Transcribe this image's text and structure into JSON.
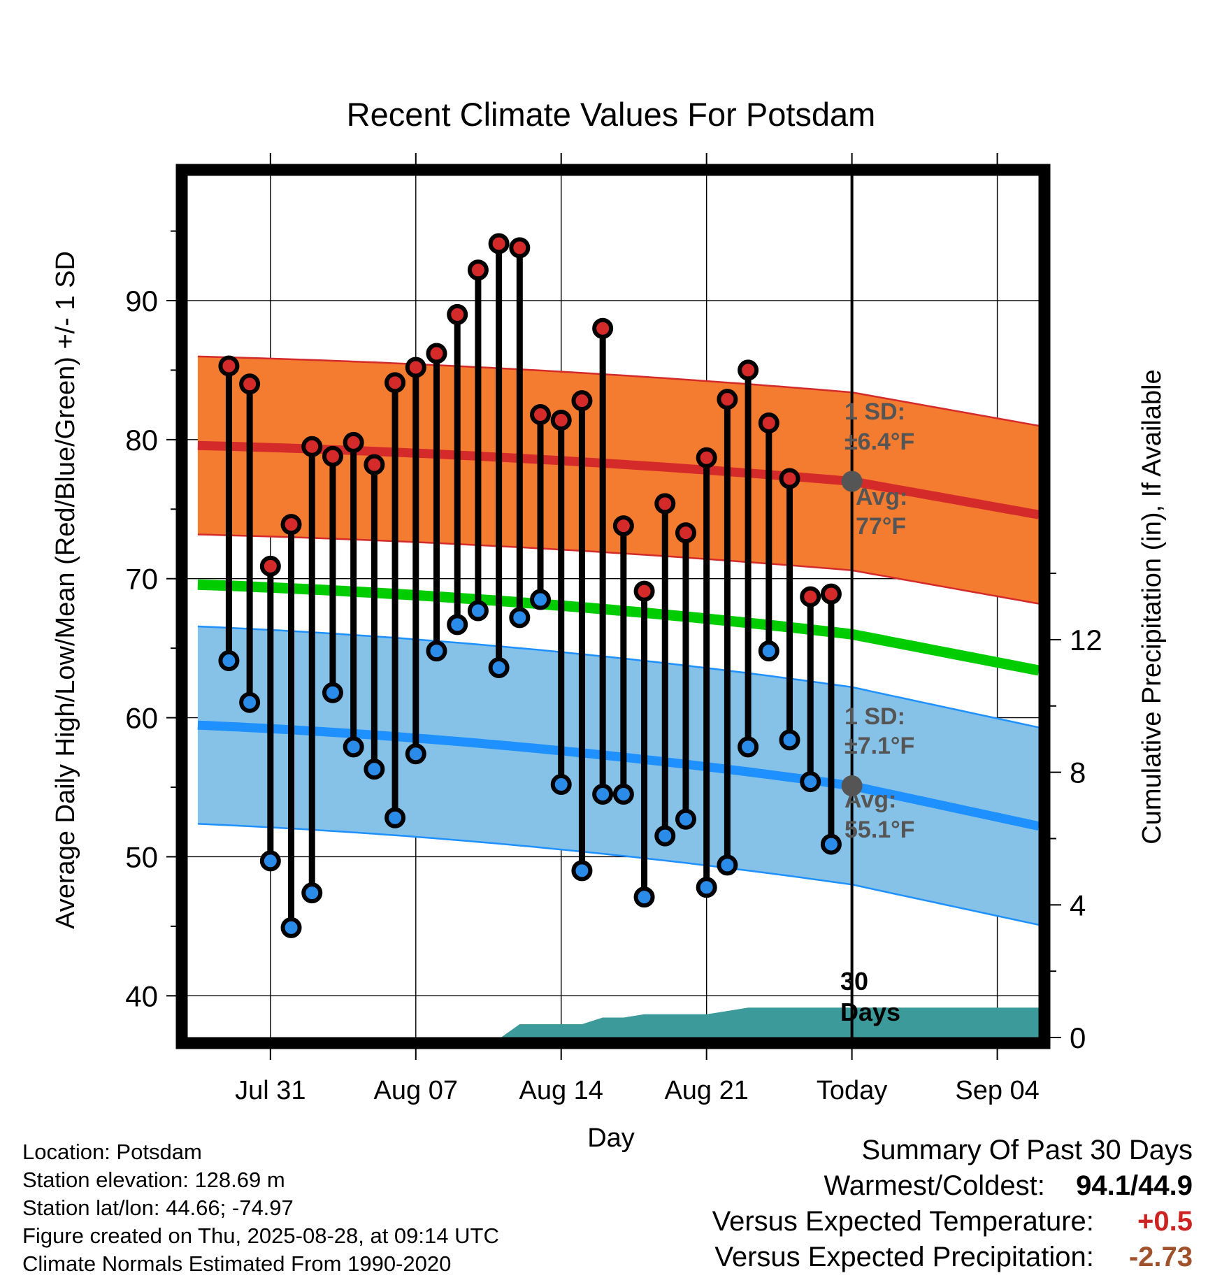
{
  "chart_data": {
    "type": "line",
    "title": "Recent Climate Values For Potsdam",
    "xlabel": "Day",
    "ylabel": "Average Daily High/Low/Mean (Red/Blue/Green) +/- 1 SD",
    "y2label": "Cumulative Precipitation (in), If Available",
    "ylim": [
      37,
      99
    ],
    "y2lim": [
      0,
      26
    ],
    "x_axis_start": "Jul 27",
    "x_axis_end": "Sep 07",
    "x_ticks": [
      {
        "day": 4,
        "label": "Jul 31"
      },
      {
        "day": 11,
        "label": "Aug 07"
      },
      {
        "day": 18,
        "label": "Aug 14"
      },
      {
        "day": 25,
        "label": "Aug 21"
      },
      {
        "day": 32,
        "label": "Today"
      },
      {
        "day": 39,
        "label": "Sep 04"
      }
    ],
    "y_ticks": [
      40,
      50,
      60,
      70,
      80,
      90
    ],
    "y2_ticks": [
      0,
      4,
      8,
      12
    ],
    "dates": [
      "Jul 29",
      "Jul 30",
      "Jul 31",
      "Aug 01",
      "Aug 02",
      "Aug 03",
      "Aug 04",
      "Aug 05",
      "Aug 06",
      "Aug 07",
      "Aug 08",
      "Aug 09",
      "Aug 10",
      "Aug 11",
      "Aug 12",
      "Aug 13",
      "Aug 14",
      "Aug 15",
      "Aug 16",
      "Aug 17",
      "Aug 18",
      "Aug 19",
      "Aug 20",
      "Aug 21",
      "Aug 22",
      "Aug 23",
      "Aug 24",
      "Aug 25",
      "Aug 26",
      "Aug 27"
    ],
    "series": [
      {
        "name": "High",
        "color": "#d42a2a",
        "values": [
          85.3,
          84.0,
          70.9,
          73.9,
          79.5,
          78.8,
          79.8,
          78.2,
          84.1,
          85.2,
          86.2,
          89.0,
          92.2,
          94.1,
          93.8,
          81.8,
          81.4,
          82.8,
          88.0,
          73.8,
          69.1,
          75.4,
          73.3,
          78.7,
          82.9,
          85.0,
          81.2,
          77.2,
          68.7,
          68.9
        ]
      },
      {
        "name": "Low",
        "color": "#2a8ce8",
        "values": [
          64.1,
          61.1,
          49.7,
          44.9,
          47.4,
          61.8,
          57.9,
          56.3,
          52.8,
          57.4,
          64.8,
          66.7,
          67.7,
          63.6,
          67.2,
          68.5,
          55.2,
          49.0,
          54.5,
          54.5,
          47.1,
          51.5,
          52.7,
          47.8,
          49.4,
          57.9,
          64.8,
          58.4,
          55.4,
          50.9
        ]
      }
    ],
    "normals": {
      "high_mean_start": 79.6,
      "high_mean_today": 77.0,
      "high_mean_end": 74.6,
      "high_sd": 6.4,
      "low_mean_start": 59.5,
      "low_mean_today": 55.1,
      "low_mean_end": 52.2,
      "low_sd": 7.1,
      "mean_start": 69.6,
      "mean_today": 66.0,
      "mean_end": 63.4
    },
    "precip_cumulative": {
      "days": [
        15.1,
        16,
        18,
        19,
        20,
        21,
        22,
        23,
        24,
        25,
        26,
        27,
        28,
        32,
        41
      ],
      "values": [
        0.0,
        0.4,
        0.4,
        0.4,
        0.6,
        0.6,
        0.7,
        0.7,
        0.7,
        0.7,
        0.8,
        0.9,
        0.9,
        0.9,
        0.9
      ]
    },
    "grid": true
  },
  "annotations": {
    "high_sd_line1": "1 SD:",
    "high_sd_line2": "±6.4°F",
    "high_avg_line1": "Avg:",
    "high_avg_line2": "77°F",
    "low_sd_line1": "1 SD:",
    "low_sd_line2": "±7.1°F",
    "low_avg_line1": "Avg:",
    "low_avg_line2": "55.1°F",
    "period_line1": "30",
    "period_line2": "Days"
  },
  "footer": {
    "location": "Location: Potsdam",
    "elevation": "Station elevation: 128.69 m",
    "latlon": "Station lat/lon: 44.66; -74.97",
    "created": "Figure created on Thu, 2025-08-28, at 09:14 UTC",
    "normals": "Climate Normals Estimated From 1990-2020"
  },
  "summary": {
    "title": "Summary Of Past 30 Days",
    "warm_cold_label": "Warmest/Coldest:",
    "warm_cold_value": "94.1/44.9",
    "temp_label": "Versus Expected Temperature:",
    "temp_value": "+0.5",
    "temp_color": "#cc2222",
    "precip_label": "Versus Expected Precipitation:",
    "precip_value": "-2.73",
    "precip_color": "#a0522d"
  },
  "colors": {
    "high_band": "#f47c30",
    "high_line": "#d42a2a",
    "low_band": "#86c2e8",
    "low_line": "#1e90ff",
    "mean_line": "#00cc00",
    "precip": "#3d9a9a",
    "annotation": "#555555"
  }
}
